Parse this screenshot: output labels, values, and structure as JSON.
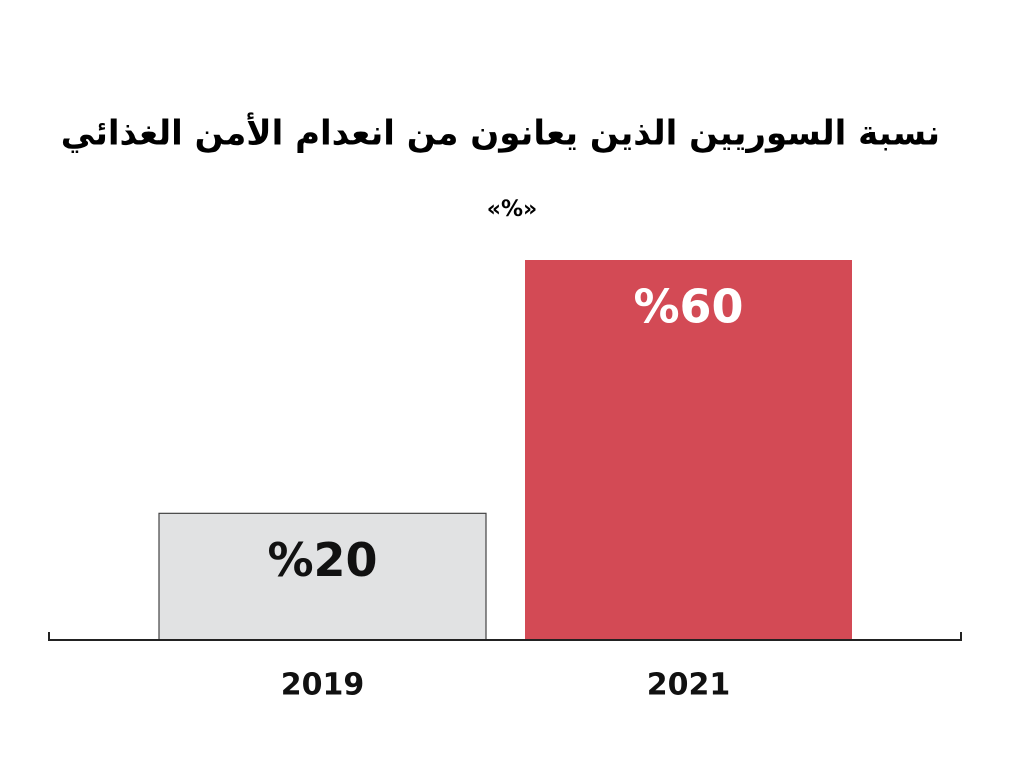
{
  "chart_data": {
    "type": "bar",
    "title": "نسبة السوريين الذين يعانون من انعدام الأمن الغذائي",
    "subtitle": "«%»",
    "categories": [
      "2019",
      "2021"
    ],
    "values": [
      20,
      60
    ],
    "value_labels": [
      "%20",
      "%60"
    ],
    "colors": [
      "#e1e2e3",
      "#d34a55"
    ]
  }
}
